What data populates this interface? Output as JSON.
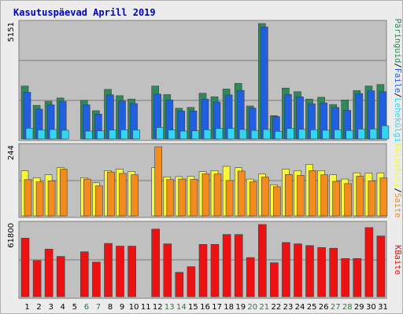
{
  "title": "Kasutuspäevad Aprill 2019",
  "colors": {
    "panel_bg": "#c0c0c0",
    "hits": "#2d8a5a",
    "files": "#2060e0",
    "pages": "#33d6f2",
    "visits": "#f8f838",
    "sites": "#f28c1e",
    "kbytes": "#ee1111",
    "weekday_label": "#000000",
    "weekend_label": "#2a7a40"
  },
  "chart_data": [
    {
      "type": "bar",
      "panel": "top",
      "y_tick_label": "5151",
      "ylim": [
        0,
        5151
      ],
      "categories": [
        "1",
        "2",
        "3",
        "4",
        "5",
        "6",
        "7",
        "8",
        "9",
        "10",
        "11",
        "12",
        "13",
        "14",
        "15",
        "16",
        "17",
        "18",
        "19",
        "20",
        "21",
        "22",
        "23",
        "24",
        "25",
        "26",
        "27",
        "28",
        "29",
        "30",
        "31"
      ],
      "weekend": [
        "6",
        "7",
        "13",
        "14",
        "20",
        "21",
        "27",
        "28"
      ],
      "series": [
        {
          "name": "Päringuid",
          "color_key": "hits",
          "values": [
            2360,
            1500,
            1680,
            1830,
            0,
            1720,
            1260,
            2210,
            1930,
            1780,
            0,
            2360,
            1980,
            1370,
            1410,
            2040,
            1880,
            2230,
            2480,
            1470,
            5151,
            1040,
            2270,
            2110,
            1780,
            1860,
            1540,
            1740,
            2160,
            2360,
            2430
          ]
        },
        {
          "name": "Faile",
          "color_key": "files",
          "values": [
            2080,
            1330,
            1520,
            1680,
            0,
            1520,
            1110,
            1970,
            1700,
            1580,
            0,
            2000,
            1740,
            1250,
            1250,
            1780,
            1650,
            1970,
            2170,
            1380,
            5000,
            1000,
            1990,
            1880,
            1570,
            1610,
            1410,
            1280,
            2030,
            2150,
            2110
          ]
        },
        {
          "name": "Lehekülgi",
          "color_key": "pages",
          "values": [
            480,
            400,
            420,
            390,
            0,
            350,
            360,
            400,
            410,
            400,
            0,
            510,
            400,
            350,
            360,
            410,
            470,
            470,
            420,
            380,
            420,
            340,
            470,
            430,
            410,
            390,
            410,
            380,
            440,
            440,
            590
          ]
        }
      ],
      "legend": [
        "Päringuid",
        "Faile",
        "Lehekülgi"
      ]
    },
    {
      "type": "bar",
      "panel": "middle",
      "y_tick_label": "244",
      "ylim": [
        0,
        244
      ],
      "categories": [
        "1",
        "2",
        "3",
        "4",
        "5",
        "6",
        "7",
        "8",
        "9",
        "10",
        "11",
        "12",
        "13",
        "14",
        "15",
        "16",
        "17",
        "18",
        "19",
        "20",
        "21",
        "22",
        "23",
        "24",
        "25",
        "26",
        "27",
        "28",
        "29",
        "30",
        "31"
      ],
      "series": [
        {
          "name": "Külastusi",
          "color_key": "visits",
          "values": [
            159,
            135,
            145,
            170,
            0,
            135,
            117,
            160,
            165,
            157,
            0,
            170,
            138,
            139,
            140,
            156,
            160,
            175,
            170,
            130,
            148,
            110,
            165,
            160,
            182,
            160,
            145,
            130,
            152,
            151,
            152
          ]
        },
        {
          "name": "Saite",
          "color_key": "sites",
          "values": [
            128,
            120,
            124,
            165,
            0,
            130,
            106,
            155,
            150,
            145,
            0,
            244,
            128,
            130,
            129,
            149,
            148,
            125,
            158,
            120,
            137,
            103,
            146,
            143,
            160,
            145,
            122,
            114,
            140,
            124,
            134
          ]
        }
      ],
      "legend": [
        "Külastusi",
        "Saite"
      ]
    },
    {
      "type": "bar",
      "panel": "bottom",
      "y_tick_label": "61800",
      "ylim": [
        0,
        61800
      ],
      "categories": [
        "1",
        "2",
        "3",
        "4",
        "5",
        "6",
        "7",
        "8",
        "9",
        "10",
        "11",
        "12",
        "13",
        "14",
        "15",
        "16",
        "17",
        "18",
        "19",
        "20",
        "21",
        "22",
        "23",
        "24",
        "25",
        "26",
        "27",
        "28",
        "29",
        "30",
        "31"
      ],
      "series": [
        {
          "name": "KBaite",
          "color_key": "kbytes",
          "values": [
            50100,
            31000,
            40800,
            34500,
            0,
            38500,
            29600,
            45600,
            43300,
            43300,
            0,
            57900,
            45300,
            20900,
            25700,
            44800,
            44800,
            53300,
            53300,
            33500,
            61800,
            29100,
            46400,
            45300,
            43800,
            42100,
            41500,
            32700,
            32700,
            59200,
            52000
          ]
        }
      ],
      "legend": [
        "KBaite"
      ]
    }
  ],
  "legend_text": {
    "top": [
      {
        "text": "Päringuid",
        "color_key": "hits"
      },
      {
        "text": "/",
        "color_key": "weekday_label"
      },
      {
        "text": "Faile",
        "color_key": "files"
      },
      {
        "text": "/",
        "color_key": "weekday_label"
      },
      {
        "text": "Lehekülgi",
        "color_key": "pages"
      }
    ],
    "middle": [
      {
        "text": "Külastusi",
        "color_key": "visits"
      },
      {
        "text": "/",
        "color_key": "weekday_label"
      },
      {
        "text": "Saite",
        "color_key": "sites"
      }
    ],
    "bottom": [
      {
        "text": "KBaite",
        "color_key": "kbytes"
      }
    ]
  }
}
